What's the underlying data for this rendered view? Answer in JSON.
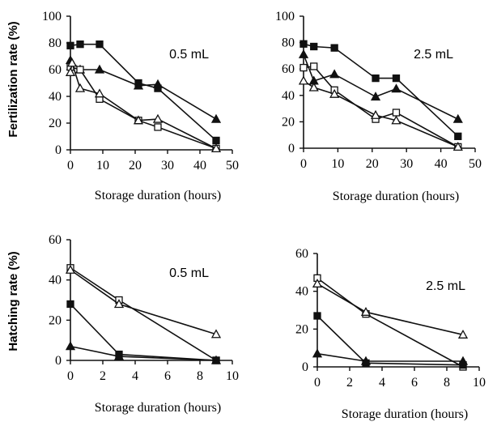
{
  "figure": {
    "top_ylabel": "Fertilization rate (%)",
    "bottom_ylabel": "Hatching rate (%)"
  },
  "chart_data": [
    {
      "id": "fert-05",
      "type": "line",
      "annotation": "0.5 mL",
      "xlabel": "Storage duration (hours)",
      "ylabel": "Fertilization rate (%)",
      "xlim": [
        0,
        50
      ],
      "ylim": [
        0,
        100
      ],
      "xticks": [
        0,
        10,
        20,
        30,
        40,
        50
      ],
      "yticks": [
        0,
        20,
        40,
        60,
        80,
        100
      ],
      "grid": false,
      "series": [
        {
          "marker": "filled-square",
          "x": [
            0,
            3,
            9,
            21,
            27,
            45
          ],
          "y": [
            78,
            79,
            79,
            50,
            46,
            7
          ]
        },
        {
          "marker": "filled-triangle",
          "x": [
            0,
            3,
            9,
            21,
            27,
            45
          ],
          "y": [
            67,
            60,
            60,
            48,
            49,
            23
          ]
        },
        {
          "marker": "open-square",
          "x": [
            0,
            3,
            9,
            21,
            27,
            45
          ],
          "y": [
            62,
            60,
            38,
            22,
            17,
            1
          ]
        },
        {
          "marker": "open-triangle",
          "x": [
            0,
            0.5,
            3,
            9,
            21,
            27,
            45
          ],
          "y": [
            58,
            65,
            46,
            42,
            22,
            23,
            1
          ]
        }
      ]
    },
    {
      "id": "fert-25",
      "type": "line",
      "annotation": "2.5 mL",
      "xlabel": "Storage duration (hours)",
      "ylabel": "",
      "xlim": [
        0,
        50
      ],
      "ylim": [
        0,
        100
      ],
      "xticks": [
        0,
        10,
        20,
        30,
        40,
        50
      ],
      "yticks": [
        0,
        20,
        40,
        60,
        80,
        100
      ],
      "grid": false,
      "series": [
        {
          "marker": "filled-square",
          "x": [
            0,
            3,
            9,
            21,
            27,
            45
          ],
          "y": [
            79,
            77,
            76,
            53,
            53,
            9
          ]
        },
        {
          "marker": "filled-triangle",
          "x": [
            0,
            3,
            9,
            21,
            27,
            45
          ],
          "y": [
            71,
            51,
            56,
            39,
            45,
            22
          ]
        },
        {
          "marker": "open-square",
          "x": [
            0,
            3,
            9,
            21,
            27,
            45
          ],
          "y": [
            61,
            62,
            44,
            22,
            27,
            1
          ]
        },
        {
          "marker": "open-triangle",
          "x": [
            0,
            3,
            9,
            21,
            27,
            45
          ],
          "y": [
            51,
            46,
            41,
            25,
            21,
            1
          ]
        }
      ]
    },
    {
      "id": "hatch-05",
      "type": "line",
      "annotation": "0.5 mL",
      "xlabel": "Storage duration (hours)",
      "ylabel": "Hatching rate (%)",
      "xlim": [
        0,
        10
      ],
      "ylim": [
        0,
        60
      ],
      "xticks": [
        0,
        2,
        4,
        6,
        8,
        10
      ],
      "yticks": [
        0,
        20,
        40,
        60
      ],
      "grid": false,
      "series": [
        {
          "marker": "open-square",
          "x": [
            0,
            3,
            9
          ],
          "y": [
            46,
            30,
            0
          ]
        },
        {
          "marker": "open-triangle",
          "x": [
            0,
            3,
            9
          ],
          "y": [
            45,
            28,
            13
          ]
        },
        {
          "marker": "filled-square",
          "x": [
            0,
            3,
            9
          ],
          "y": [
            28,
            3,
            0
          ]
        },
        {
          "marker": "filled-triangle",
          "x": [
            0,
            3,
            9
          ],
          "y": [
            7,
            2,
            0
          ]
        }
      ]
    },
    {
      "id": "hatch-25",
      "type": "line",
      "annotation": "2.5 mL",
      "xlabel": "Storage duration (hours)",
      "ylabel": "",
      "xlim": [
        0,
        10
      ],
      "ylim": [
        0,
        60
      ],
      "xticks": [
        0,
        2,
        4,
        6,
        8,
        10
      ],
      "yticks": [
        0,
        20,
        40,
        60
      ],
      "grid": false,
      "series": [
        {
          "marker": "open-square",
          "x": [
            0,
            3,
            9
          ],
          "y": [
            47,
            28,
            0
          ]
        },
        {
          "marker": "open-triangle",
          "x": [
            0,
            3,
            9
          ],
          "y": [
            44,
            29,
            17
          ]
        },
        {
          "marker": "filled-square",
          "x": [
            0,
            3,
            9
          ],
          "y": [
            27,
            2,
            1
          ]
        },
        {
          "marker": "filled-triangle",
          "x": [
            0,
            3,
            9
          ],
          "y": [
            7,
            3,
            3
          ]
        }
      ]
    }
  ]
}
